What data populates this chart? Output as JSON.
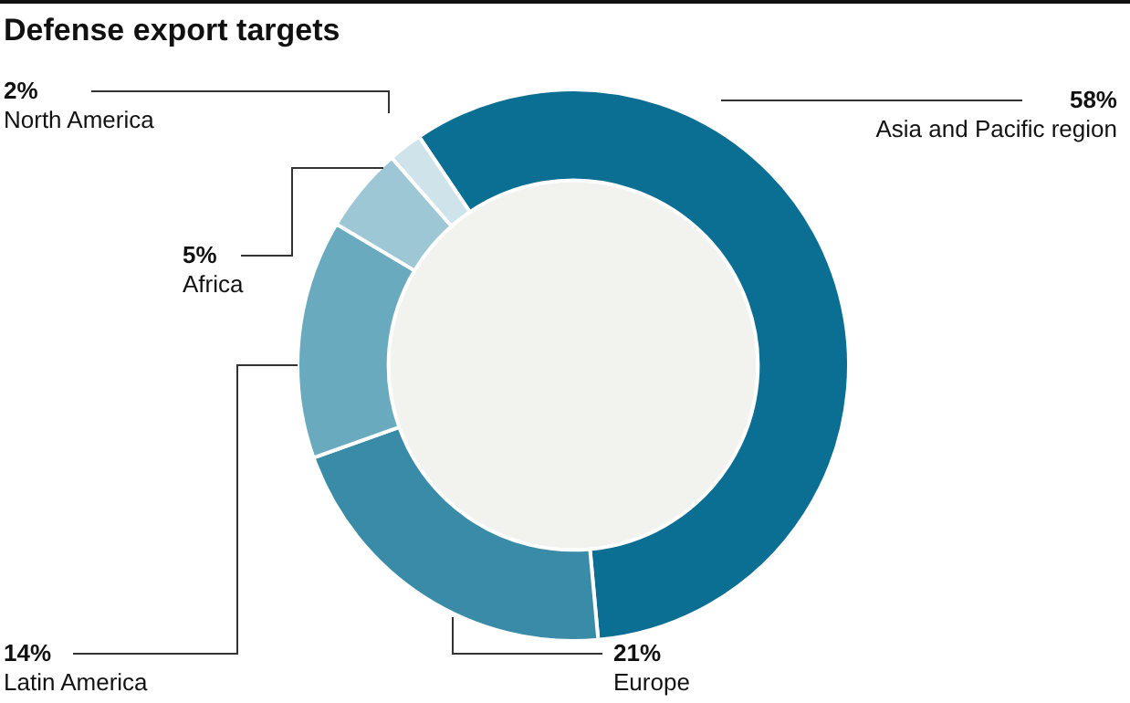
{
  "chart_data": {
    "type": "donut",
    "title": "Defense export targets",
    "categories": [
      "Asia and Pacific region",
      "Europe",
      "Latin America",
      "Africa",
      "North America"
    ],
    "values": [
      58,
      21,
      14,
      5,
      2
    ],
    "colors": [
      "#0b6e93",
      "#3a8ba8",
      "#6aaabf",
      "#9ec7d6",
      "#cfe3ea"
    ],
    "value_labels": [
      "58%",
      "21%",
      "14%",
      "5%",
      "2%"
    ]
  }
}
